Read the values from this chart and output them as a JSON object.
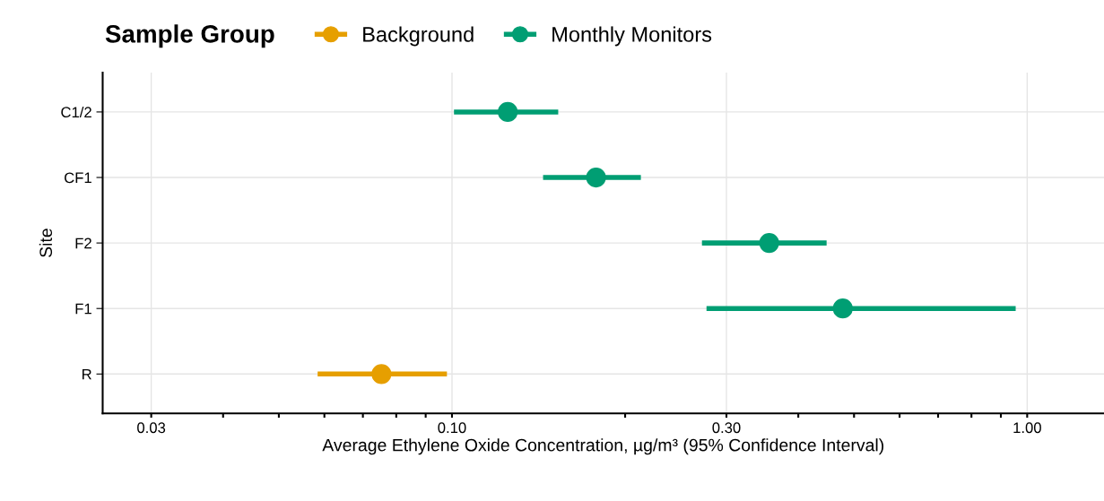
{
  "chart_data": {
    "type": "scatter",
    "orientation": "horizontal",
    "legend_title": "Sample Group",
    "xlabel": "Average Ethylene Oxide Concentration, µg/m³ (95% Confidence Interval)",
    "ylabel": "Site",
    "categories": [
      "C1/2",
      "CF1",
      "F2",
      "F1",
      "R"
    ],
    "series": [
      {
        "name": "Background",
        "color": "#e69f00",
        "values": [
          null,
          null,
          null,
          null,
          0.0754
        ],
        "errors": [
          null,
          null,
          null,
          null,
          [
            0.0584,
            0.098
          ]
        ]
      },
      {
        "name": "Monthly Monitors",
        "color": "#009e73",
        "values": [
          0.125,
          0.178,
          0.356,
          0.478,
          null
        ],
        "errors": [
          [
            0.1008,
            0.153
          ],
          [
            0.144,
            0.213
          ],
          [
            0.272,
            0.448
          ],
          [
            0.277,
            0.955
          ],
          null
        ]
      }
    ],
    "log": "x",
    "xlim": [
      0.0247,
      1.36
    ],
    "xticks": [
      0.03,
      {
        "value": 0.04,
        "label": null
      },
      {
        "value": 0.05,
        "label": null
      },
      {
        "value": 0.06,
        "label": null
      },
      {
        "value": 0.07,
        "label": null
      },
      {
        "value": 0.08,
        "label": null
      },
      {
        "value": 0.09,
        "label": null
      },
      {
        "value": 0.1,
        "label": "0.10"
      },
      {
        "value": 0.2,
        "label": null
      },
      {
        "value": 0.3,
        "label": "0.30"
      },
      {
        "value": 0.4,
        "label": null
      },
      {
        "value": 0.5,
        "label": null
      },
      {
        "value": 0.6,
        "label": null
      },
      {
        "value": 0.7,
        "label": null
      },
      {
        "value": 0.8,
        "label": null
      },
      {
        "value": 0.9,
        "label": null
      },
      {
        "value": 1.0,
        "label": "1.00"
      }
    ],
    "grid": true,
    "legend": "top",
    "marker": "circle"
  }
}
